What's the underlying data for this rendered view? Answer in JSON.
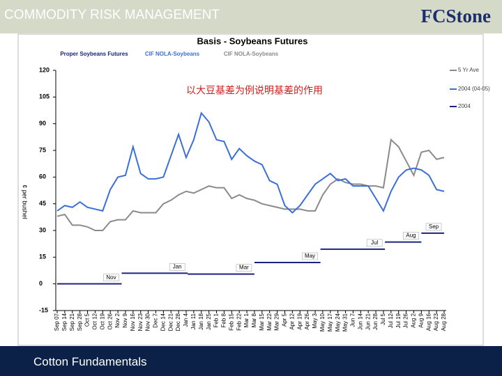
{
  "header": {
    "title": "COMMODITY RISK MANAGEMENT",
    "logo": "FCStone"
  },
  "footer": {
    "title": "Cotton Fundamentals"
  },
  "chart_data": {
    "type": "line",
    "title": "Basis - Soybeans Futures",
    "column_headers": [
      "Proper Soybeans Futures",
      "CIF NOLA-Soybeans",
      "CIF NOLA-Soybeans"
    ],
    "annotation": "以大豆基差为例说明基差的作用",
    "y_label": "¢ per bushel",
    "ylim": [
      -15,
      120
    ],
    "yticks": [
      120,
      105,
      90,
      75,
      60,
      45,
      30,
      15,
      0,
      -15
    ],
    "categories": [
      "Sep 07",
      "Sep 14",
      "Sep 21",
      "Sep 28",
      "Oct 5",
      "Oct 12",
      "Oct 19",
      "Oct 26",
      "Nov 2",
      "Nov 9",
      "Nov 16",
      "Nov 23",
      "Nov 30",
      "Dec 7",
      "Dec 14",
      "Dec 21",
      "Dec 28",
      "Jan 4",
      "Jan 11",
      "Jan 18",
      "Jan 25",
      "Feb 1",
      "Feb 8",
      "Feb 15",
      "Feb 22",
      "Mar 1",
      "Mar 8",
      "Mar 15",
      "Mar 22",
      "Mar 29",
      "Apr 5",
      "Apr 12",
      "Apr 19",
      "Apr 26",
      "May 3",
      "May 10",
      "May 17",
      "May 24",
      "May 31",
      "Jun 7",
      "Jun 14",
      "Jun 21",
      "Jun 28",
      "Jul 5",
      "Jul 12",
      "Jul 19",
      "Jul 26",
      "Aug 2",
      "Aug 9",
      "Aug 16",
      "Aug 23",
      "Aug 28"
    ],
    "series": [
      {
        "name": "5 Yr Ave",
        "color": "#8a8a8a",
        "values": [
          38,
          39,
          33,
          33,
          32,
          30,
          30,
          35,
          36,
          36,
          41,
          40,
          40,
          40,
          45,
          47,
          50,
          52,
          51,
          53,
          55,
          54,
          54,
          48,
          50,
          48,
          47,
          45,
          44,
          43,
          42,
          42,
          42,
          41,
          41,
          50,
          56,
          59,
          57,
          56,
          56,
          55,
          55,
          54,
          81,
          77,
          69,
          61,
          74,
          75,
          70,
          71
        ]
      },
      {
        "name": "2004 (04-05)",
        "color": "#3a6fd8",
        "values": [
          41,
          44,
          43,
          46,
          43,
          42,
          41,
          53,
          60,
          61,
          77,
          62,
          59,
          59,
          60,
          72,
          84,
          71,
          81,
          96,
          91,
          81,
          80,
          70,
          76,
          72,
          69,
          67,
          58,
          56,
          44,
          40,
          44,
          50,
          56,
          59,
          62,
          58,
          59,
          55,
          55,
          55,
          48,
          41,
          52,
          60,
          64,
          65,
          64,
          61,
          53,
          52
        ]
      },
      {
        "name": "2004",
        "color": "#1a237e",
        "steps": [
          {
            "label": "Nov",
            "value": 0,
            "x": [
              0,
              8.5
            ]
          },
          {
            "label": "Jan",
            "value": 6,
            "x": [
              8.5,
              17.2
            ]
          },
          {
            "label": "Mar",
            "value": 5.5,
            "x": [
              17.2,
              26
            ]
          },
          {
            "label": "May",
            "value": 12,
            "x": [
              26,
              34.7
            ]
          },
          {
            "label": "Jul",
            "value": 19.5,
            "x": [
              34.7,
              43.2
            ]
          },
          {
            "label": "Aug",
            "value": 23.5,
            "x": [
              43.2,
              48
            ]
          },
          {
            "label": "Sep",
            "value": 28.5,
            "x": [
              48,
              51
            ]
          }
        ]
      }
    ]
  }
}
